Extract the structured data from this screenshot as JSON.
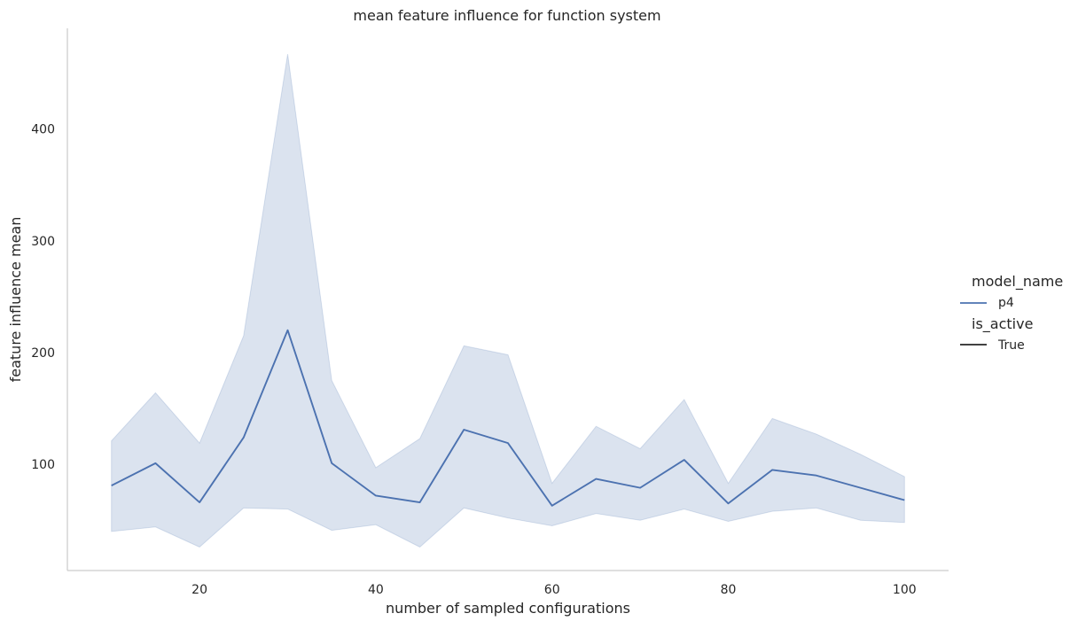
{
  "chart_data": {
    "type": "line",
    "title": "mean feature influence for function system",
    "xlabel": "number of sampled configurations",
    "ylabel": "feature influence mean",
    "xlim": [
      5,
      105
    ],
    "ylim": [
      5,
      490
    ],
    "xticks": [
      20,
      40,
      60,
      80,
      100
    ],
    "yticks": [
      100,
      200,
      300,
      400
    ],
    "grid": false,
    "legend_placement": "right",
    "x": [
      10,
      15,
      20,
      25,
      30,
      35,
      40,
      45,
      50,
      55,
      60,
      65,
      70,
      75,
      80,
      85,
      90,
      95,
      100
    ],
    "series": [
      {
        "name": "p4",
        "color": "#4c72b0",
        "band_color": "#4c72b0",
        "values": [
          81,
          101,
          66,
          124,
          220,
          101,
          72,
          66,
          131,
          119,
          63,
          87,
          79,
          104,
          65,
          95,
          90,
          79,
          68
        ],
        "band_upper": [
          121,
          164,
          119,
          215,
          467,
          175,
          97,
          123,
          206,
          198,
          83,
          134,
          114,
          158,
          83,
          141,
          127,
          109,
          89
        ],
        "band_lower": [
          40,
          44,
          26,
          61,
          60,
          41,
          46,
          26,
          61,
          52,
          45,
          56,
          50,
          60,
          49,
          58,
          61,
          50,
          48
        ]
      }
    ],
    "legend": {
      "hue_title": "model_name",
      "hue_entries": [
        {
          "label": "p4",
          "color": "#4c72b0"
        }
      ],
      "style_title": "is_active",
      "style_entries": [
        {
          "label": "True",
          "color": "#262626"
        }
      ]
    }
  }
}
